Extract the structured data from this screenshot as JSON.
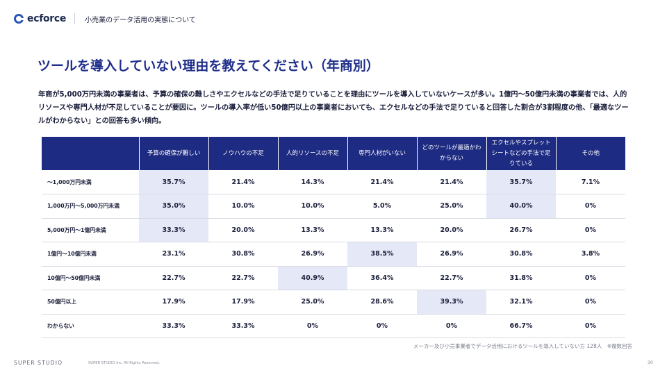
{
  "header": {
    "logo_text": "ecforce",
    "subtitle": "小売業のデータ活用の実態について"
  },
  "title": "ツールを導入していない理由を教えてください（年商別）",
  "description": "年商が5,000万円未満の事業者は、予算の確保の難しさやエクセルなどの手法で足りていることを理由にツールを導入していないケースが多い。1億円〜50億円未満の事業者では、人的リソースや専門人材が不足していることが要因に。ツールの導入率が低い50億円以上の事業者においても、エクセルなどの手法で足りていると回答した割合が3割程度の他、「最適なツールがわからない」との回答も多い傾向。",
  "table": {
    "columns": [
      "予算の確保が難しい",
      "ノウハウの不足",
      "人的リソースの不足",
      "専門人材がいない",
      "どのツールが最適かわからない",
      "エクセルやスプレットシートなどの手法で足りている",
      "その他"
    ],
    "rows": [
      {
        "label": "〜1,000万円未満",
        "values": [
          "35.7%",
          "21.4%",
          "14.3%",
          "21.4%",
          "21.4%",
          "35.7%",
          "7.1%"
        ],
        "highlight": [
          0,
          5
        ]
      },
      {
        "label": "1,000万円〜5,000万円未満",
        "values": [
          "35.0%",
          "10.0%",
          "10.0%",
          "5.0%",
          "25.0%",
          "40.0%",
          "0%"
        ],
        "highlight": [
          0,
          5
        ]
      },
      {
        "label": "5,000万円〜1億円未満",
        "values": [
          "33.3%",
          "20.0%",
          "13.3%",
          "13.3%",
          "20.0%",
          "26.7%",
          "0%"
        ],
        "highlight": [
          0
        ]
      },
      {
        "label": "1億円〜10億円未満",
        "values": [
          "23.1%",
          "30.8%",
          "26.9%",
          "38.5%",
          "26.9%",
          "30.8%",
          "3.8%"
        ],
        "highlight": [
          3
        ]
      },
      {
        "label": "10億円〜50億円未満",
        "values": [
          "22.7%",
          "22.7%",
          "40.9%",
          "36.4%",
          "22.7%",
          "31.8%",
          "0%"
        ],
        "highlight": [
          2
        ]
      },
      {
        "label": "50億円以上",
        "values": [
          "17.9%",
          "17.9%",
          "25.0%",
          "28.6%",
          "39.3%",
          "32.1%",
          "0%"
        ],
        "highlight": [
          4
        ]
      },
      {
        "label": "わからない",
        "values": [
          "33.3%",
          "33.3%",
          "0%",
          "0%",
          "0%",
          "66.7%",
          "0%"
        ],
        "highlight": []
      }
    ]
  },
  "note": "メーカー及び小売事業者でデータ活用におけるツールを導入していない方 128人　※複数回答",
  "footer": {
    "brand": "SUPER STUDIO",
    "copyright": "SUPER STUDIO Inc. All Rights Reserved.",
    "page": "30"
  },
  "colors": {
    "header_bg": "#1e2b82",
    "title": "#1f2f8a",
    "highlight": "#e5e9f7"
  }
}
